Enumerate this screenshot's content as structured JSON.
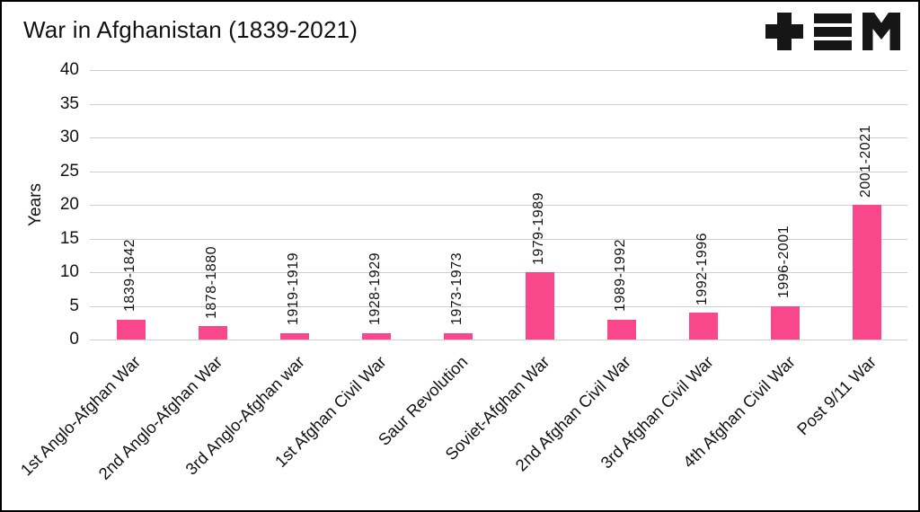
{
  "title": "War in Afghanistan (1839-2021)",
  "icons": {
    "logo_plus": "plus-icon",
    "logo_bars": "triple-bar-icon",
    "logo_m": "m-glyph-icon"
  },
  "chart_data": {
    "type": "bar",
    "title": "War in Afghanistan (1839-2021)",
    "categories": [
      "1st Anglo-Afghan War",
      "2nd Anglo-Afghan War",
      "3rd Anglo-Afghan war",
      "1st Afghan Civil War",
      "Saur Revolution",
      "Soviet-Afghan War",
      "2nd Afghan Civil War",
      "3rd Afghan Civil War",
      "4th Afghan Civil War",
      "Post 9/11 War"
    ],
    "values": [
      3,
      2,
      1,
      1,
      1,
      10,
      3,
      4,
      5,
      20
    ],
    "bar_labels": [
      "1839-1842",
      "1878-1880",
      "1919-1919",
      "1928-1929",
      "1973-1973",
      "1979-1989",
      "1989-1992",
      "1992-1996",
      "1996-2001",
      "2001-2021"
    ],
    "xlabel": "",
    "ylabel": "Years",
    "yticks": [
      0,
      5,
      10,
      15,
      20,
      25,
      30,
      35,
      40
    ],
    "ylim": [
      0,
      40
    ],
    "bar_color": "#F8478B",
    "grid": true,
    "legend": "none"
  }
}
